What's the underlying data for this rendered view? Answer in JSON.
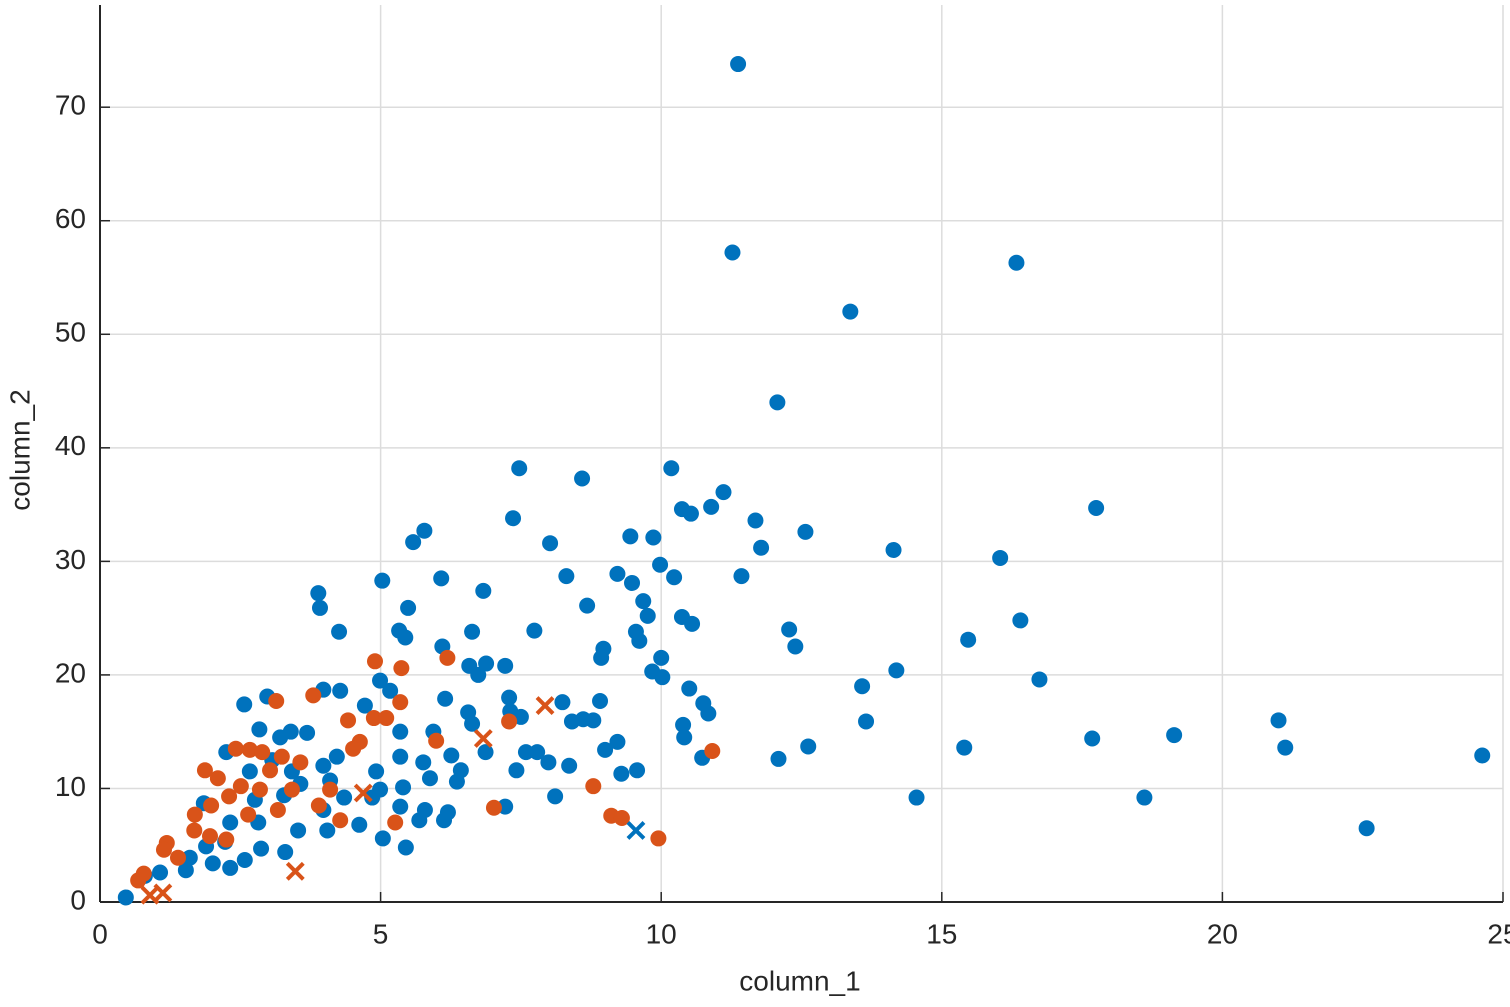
{
  "chart_data": {
    "type": "scatter",
    "xlabel": "column_1",
    "ylabel": "column_2",
    "xlim": [
      0,
      25
    ],
    "ylim": [
      0,
      79
    ],
    "xticks": [
      0,
      5,
      10,
      15,
      20,
      25
    ],
    "yticks": [
      0,
      10,
      20,
      30,
      40,
      50,
      60,
      70
    ],
    "grid": true,
    "series": [
      {
        "color": "#0072bd",
        "marker": "o",
        "x": [
          11.37,
          11.27,
          16.33,
          13.37,
          12.07,
          7.47,
          10.18,
          8.59,
          17.75,
          11.11,
          10.89,
          10.37,
          10.53,
          11.68,
          7.36,
          12.57,
          5.78,
          5.58,
          9.45,
          9.86,
          8.02,
          11.78,
          14.14,
          16.04,
          9.98,
          9.22,
          11.43,
          8.31,
          10.23,
          5.03,
          6.08,
          9.48,
          6.83,
          3.89,
          9.68,
          8.68,
          3.92,
          5.49,
          9.76,
          10.37,
          16.4,
          10.55,
          4.26,
          7.74,
          6.63,
          12.28,
          5.33,
          5.44,
          9.55,
          9.61,
          15.47,
          6.1,
          12.39,
          8.97,
          8.93,
          10.0,
          6.88,
          6.58,
          7.22,
          9.84,
          14.19,
          10.02,
          16.74,
          6.74,
          4.99,
          5.17,
          13.58,
          10.5,
          2.57,
          2.98,
          3.98,
          4.28,
          6.15,
          7.29,
          8.24,
          8.91,
          10.75,
          10.84,
          4.72,
          6.56,
          7.31,
          7.5,
          8.41,
          8.61,
          8.79,
          13.65,
          21.0,
          10.39,
          2.84,
          3.4,
          3.69,
          5.35,
          5.94,
          6.63,
          10.41,
          19.14,
          17.68,
          9.22,
          15.4,
          12.62,
          21.12,
          9.0,
          7.59,
          2.25,
          6.26,
          6.87,
          7.79,
          12.09,
          10.73,
          24.63,
          7.99,
          8.36,
          5.76,
          5.35,
          4.22,
          3.98,
          7.42,
          6.43,
          9.29,
          9.57,
          4.92,
          3.42,
          2.67,
          5.88,
          6.36,
          4.1,
          3.57,
          5.4,
          4.99,
          3.28,
          4.35,
          8.11,
          14.55,
          18.61,
          4.85,
          2.76,
          1.85,
          5.35,
          7.22,
          6.2,
          5.79,
          3.98,
          5.69,
          2.82,
          2.32,
          6.13,
          4.62,
          4.05,
          3.53,
          22.57,
          2.23,
          5.04,
          2.87,
          3.3,
          1.89,
          5.45,
          2.58,
          2.01,
          1.6,
          2.32,
          1.53,
          1.07,
          0.8,
          0.46,
          3.21,
          3.07
        ],
        "y": [
          73.8,
          57.2,
          56.3,
          52.0,
          44.0,
          38.2,
          38.2,
          37.3,
          34.7,
          36.1,
          34.8,
          34.6,
          34.2,
          33.6,
          33.8,
          32.6,
          32.7,
          31.7,
          32.2,
          32.1,
          31.6,
          31.2,
          31.0,
          30.3,
          29.7,
          28.9,
          28.7,
          28.7,
          28.6,
          28.3,
          28.5,
          28.1,
          27.4,
          27.2,
          26.5,
          26.1,
          25.9,
          25.9,
          25.2,
          25.1,
          24.8,
          24.5,
          23.8,
          23.9,
          23.8,
          24.0,
          23.9,
          23.3,
          23.8,
          23.0,
          23.1,
          22.5,
          22.5,
          22.3,
          21.5,
          21.5,
          21.0,
          20.8,
          20.8,
          20.3,
          20.4,
          19.8,
          19.6,
          20.0,
          19.5,
          18.6,
          19.0,
          18.8,
          17.4,
          18.1,
          18.7,
          18.6,
          17.9,
          18.0,
          17.6,
          17.7,
          17.5,
          16.6,
          17.3,
          16.7,
          16.8,
          16.3,
          15.9,
          16.1,
          16.0,
          15.9,
          16.0,
          15.6,
          15.2,
          15.0,
          14.9,
          15.0,
          15.0,
          15.7,
          14.5,
          14.7,
          14.4,
          14.1,
          13.6,
          13.7,
          13.6,
          13.4,
          13.2,
          13.2,
          12.9,
          13.2,
          13.2,
          12.6,
          12.7,
          12.9,
          12.3,
          12.0,
          12.3,
          12.8,
          12.8,
          12.0,
          11.6,
          11.6,
          11.3,
          11.6,
          11.5,
          11.5,
          11.5,
          10.9,
          10.6,
          10.7,
          10.4,
          10.1,
          9.9,
          9.4,
          9.2,
          9.3,
          9.2,
          9.2,
          9.2,
          9.0,
          8.7,
          8.4,
          8.4,
          7.9,
          8.1,
          8.1,
          7.2,
          7.0,
          7.0,
          7.2,
          6.8,
          6.3,
          6.3,
          6.5,
          5.3,
          5.6,
          4.7,
          4.4,
          4.9,
          4.8,
          3.7,
          3.4,
          3.9,
          3.0,
          2.8,
          2.6,
          2.3,
          0.4,
          14.5,
          12.5
        ]
      },
      {
        "color": "#d95319",
        "marker": "o",
        "x": [
          4.9,
          5.37,
          6.19,
          3.8,
          3.14,
          5.35,
          4.88,
          5.1,
          4.42,
          7.29,
          5.99,
          4.63,
          4.51,
          2.42,
          2.67,
          2.89,
          10.91,
          3.24,
          3.57,
          2.1,
          3.03,
          2.51,
          2.85,
          2.3,
          1.98,
          1.69,
          3.17,
          3.9,
          7.02,
          8.79,
          9.11,
          9.3,
          9.95,
          2.25,
          1.19,
          1.14,
          1.68,
          1.39,
          0.78,
          0.68,
          1.96,
          2.64,
          3.42,
          1.87,
          5.26,
          4.1,
          4.28
        ],
        "y": [
          21.2,
          20.6,
          21.5,
          18.2,
          17.7,
          17.6,
          16.2,
          16.2,
          16.0,
          15.9,
          14.2,
          14.1,
          13.5,
          13.5,
          13.4,
          13.2,
          13.3,
          12.8,
          12.3,
          10.9,
          11.6,
          10.2,
          9.9,
          9.3,
          8.5,
          7.7,
          8.1,
          8.5,
          8.3,
          10.2,
          7.6,
          7.4,
          5.6,
          5.5,
          5.2,
          4.6,
          6.3,
          3.9,
          2.5,
          1.9,
          5.8,
          7.7,
          9.9,
          11.6,
          7.0,
          9.9,
          7.2
        ]
      },
      {
        "color": "#d95319",
        "marker": "x",
        "x": [
          7.93,
          3.48,
          0.89,
          1.12,
          4.69,
          6.83
        ],
        "y": [
          17.3,
          2.7,
          0.6,
          0.8,
          9.6,
          14.4
        ]
      },
      {
        "color": "#0072bd",
        "marker": "x",
        "x": [
          9.55
        ],
        "y": [
          6.3
        ]
      }
    ]
  }
}
